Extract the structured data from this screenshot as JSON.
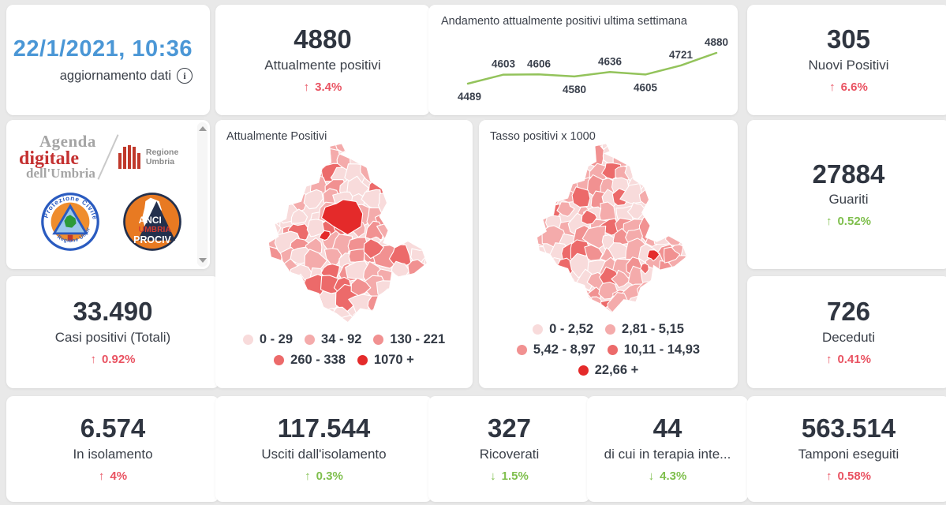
{
  "update": {
    "datetime": "22/1/2021, 10:36",
    "label": "aggiornamento dati",
    "info_icon": "i"
  },
  "stats": {
    "attualmente": {
      "value": "4880",
      "label": "Attualmente positivi",
      "arrow": "↑",
      "delta": "3.4%",
      "tone": "red"
    },
    "nuovi": {
      "value": "305",
      "label": "Nuovi Positivi",
      "arrow": "↑",
      "delta": "6.6%",
      "tone": "red"
    },
    "guariti": {
      "value": "27884",
      "label": "Guariti",
      "arrow": "↑",
      "delta": "0.52%",
      "tone": "green"
    },
    "deceduti": {
      "value": "726",
      "label": "Deceduti",
      "arrow": "↑",
      "delta": "0.41%",
      "tone": "red"
    },
    "casi": {
      "value": "33.490",
      "label": "Casi positivi (Totali)",
      "arrow": "↑",
      "delta": "0.92%",
      "tone": "red"
    },
    "isolamento": {
      "value": "6.574",
      "label": "In isolamento",
      "arrow": "↑",
      "delta": "4%",
      "tone": "red"
    },
    "usciti": {
      "value": "117.544",
      "label": "Usciti dall'isolamento",
      "arrow": "↑",
      "delta": "0.3%",
      "tone": "green"
    },
    "ricoverati": {
      "value": "327",
      "label": "Ricoverati",
      "arrow": "↓",
      "delta": "1.5%",
      "tone": "green"
    },
    "terapia": {
      "value": "44",
      "label": "di cui in terapia inte...",
      "arrow": "↓",
      "delta": "4.3%",
      "tone": "green"
    },
    "tamponi": {
      "value": "563.514",
      "label": "Tamponi eseguiti",
      "arrow": "↑",
      "delta": "0.58%",
      "tone": "red"
    }
  },
  "chart_data": [
    {
      "type": "line",
      "title": "Andamento attualmente positivi ultima settimana",
      "x": [
        1,
        2,
        3,
        4,
        5,
        6,
        7,
        8
      ],
      "values": [
        4489,
        4603,
        4606,
        4580,
        4636,
        4605,
        4721,
        4880
      ],
      "label_positions": [
        "below",
        "above",
        "above",
        "below",
        "above",
        "below",
        "above",
        "above"
      ],
      "line_color": "#93c35b",
      "ylim": [
        4450,
        4920
      ],
      "grid": false,
      "legend": "none",
      "xlabel": "",
      "ylabel": ""
    },
    {
      "type": "heatmap",
      "subtype": "choropleth-umbria",
      "title": "Attualmente Positivi",
      "legend": [
        {
          "label": "0 - 29",
          "color": "#f8dbdb"
        },
        {
          "label": "34 - 92",
          "color": "#f4abab"
        },
        {
          "label": "130 - 221",
          "color": "#f19191"
        },
        {
          "label": "260 - 338",
          "color": "#ec6a6a"
        },
        {
          "label": "1070 +",
          "color": "#e42a2a"
        }
      ]
    },
    {
      "type": "heatmap",
      "subtype": "choropleth-umbria",
      "title": "Tasso positivi x 1000",
      "legend": [
        {
          "label": "0 - 2,52",
          "color": "#f8dbdb"
        },
        {
          "label": "2,81 - 5,15",
          "color": "#f4abab"
        },
        {
          "label": "5,42 - 8,97",
          "color": "#f19191"
        },
        {
          "label": "10,11 - 14,93",
          "color": "#ec6a6a"
        },
        {
          "label": "22,66 +",
          "color": "#e42a2a"
        }
      ]
    }
  ],
  "logos": {
    "agenda": {
      "word1": "Agenda",
      "word2": "digitale",
      "word3": "dell'Umbria"
    },
    "regione": {
      "label": "Regione Umbria"
    },
    "protezione": {
      "arc_top": "Protezione Civile",
      "arc_bottom": "Regione Umbria"
    },
    "anci": {
      "line1": "ANCI",
      "line2": "UMBRIA",
      "line3": "PROCIV"
    }
  },
  "colors": {
    "accent_blue": "#4b97d6",
    "bad_red": "#e95362",
    "good_green": "#7fbf4d",
    "line_green": "#93c35b",
    "map_special_red": "#e42a2a",
    "background": "#e9e9e9"
  }
}
